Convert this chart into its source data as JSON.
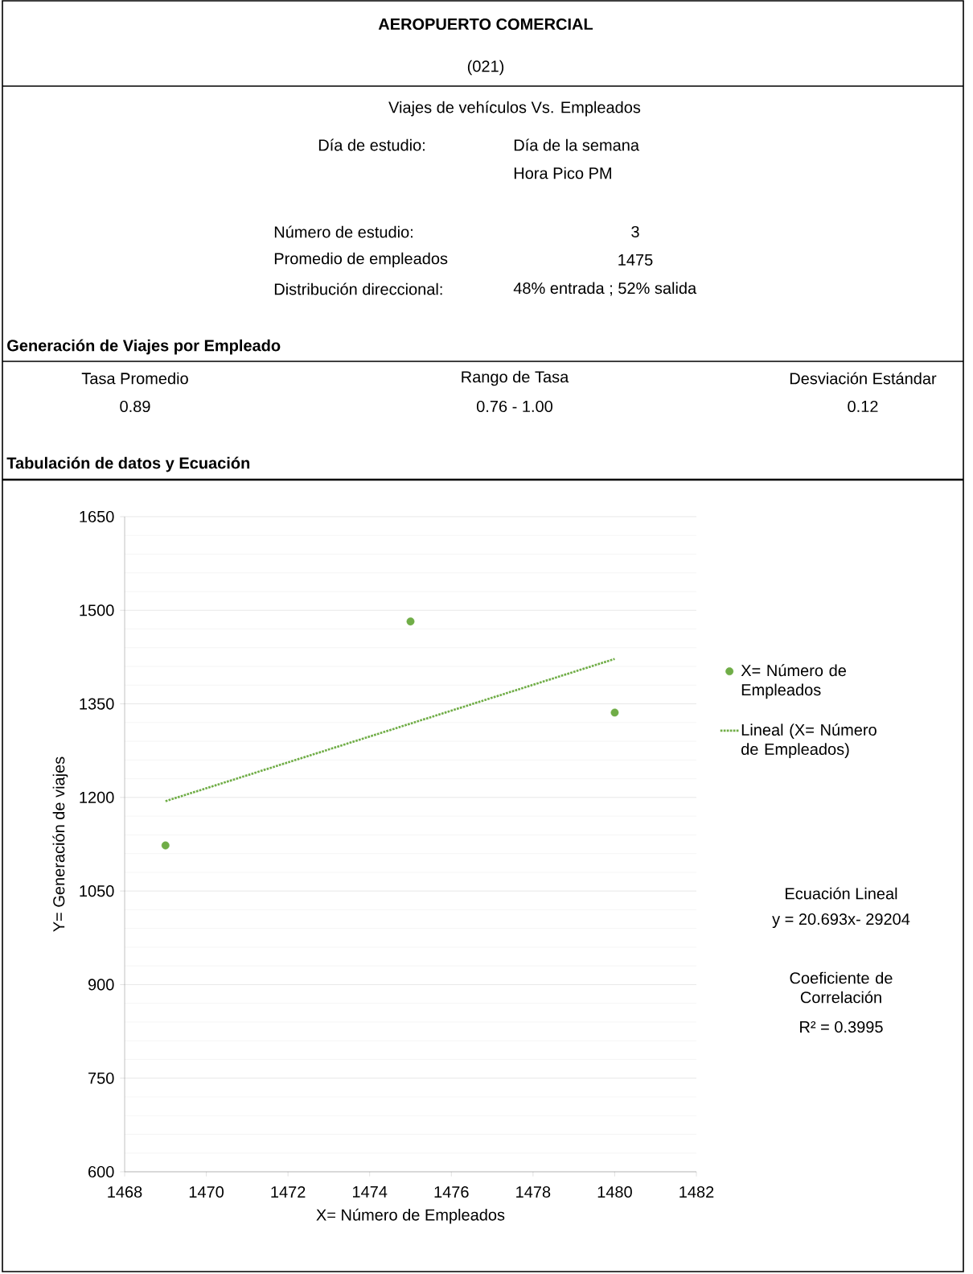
{
  "chart_data": {
    "type": "scatter",
    "title": "AEROPUERTO COMERCIAL",
    "subtitle": "(021)",
    "xlabel": "X= Número de Empleados",
    "ylabel": "Y= Generación de viajes",
    "x": [
      1469,
      1475,
      1480
    ],
    "series": [
      {
        "name": "X= Número de Empleados",
        "marker": "circle",
        "color": "#70ad47",
        "values": [
          1123,
          1482,
          1336
        ]
      },
      {
        "name": "Lineal (X= Número de Empleados)",
        "type": "line",
        "line_style": "dotted",
        "marker": "none",
        "color": "#70ad47",
        "x": [
          1469,
          1480
        ],
        "values": [
          1194,
          1422
        ]
      }
    ],
    "xlim": [
      1468,
      1482
    ],
    "xticks": [
      1468,
      1470,
      1472,
      1474,
      1476,
      1478,
      1480,
      1482
    ],
    "ylim": [
      600,
      1650
    ],
    "yticks": [
      600,
      750,
      900,
      1050,
      1200,
      1350,
      1500,
      1650
    ],
    "grid": "y",
    "legend": "right",
    "annotations": [
      "Viajes de vehículos Vs. Empleados",
      "Día de estudio:",
      "Día de la semana",
      "Hora Pico PM",
      "Número de estudio:",
      "3",
      "Promedio de empleados",
      "1475",
      "Distribución direccional:",
      "48% entrada ; 52% salida",
      "Generación de Viajes por Empleado",
      "Tasa Promedio",
      "0.89",
      "Rango de Tasa",
      "0.76 - 1.00",
      "Desviación Estándar",
      "0.12",
      "Tabulación de datos y Ecuación",
      "Ecuación Lineal",
      "y = 20.693x- 29204",
      "Coeficiente de Correlación",
      "R² = 0.3995"
    ]
  }
}
